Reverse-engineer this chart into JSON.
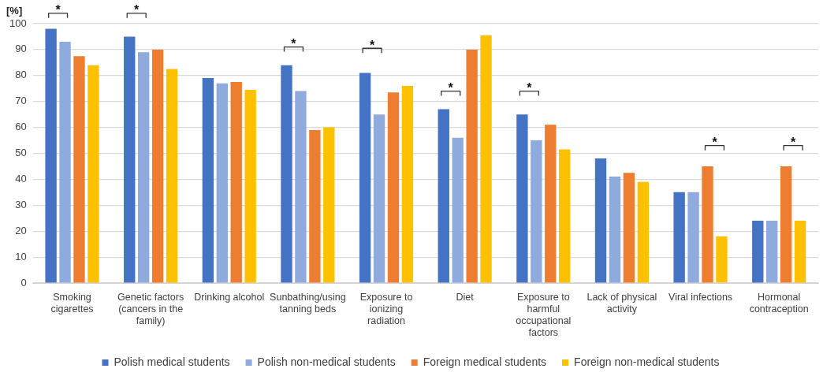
{
  "chart_data": {
    "type": "bar",
    "ylabel": "[%]",
    "categories": [
      "Smoking cigarettes",
      "Genetic factors (cancers in the family)",
      "Drinking alcohol",
      "Sunbathing/using tanning beds",
      "Exposure to ionizing radiation",
      "Diet",
      "Exposure to harmful occupational factors",
      "Lack of physical activity",
      "Viral infections",
      "Hormonal contraception"
    ],
    "series": [
      {
        "name": "Polish medical students",
        "color": "#4472c4",
        "values": [
          98,
          95,
          79,
          84,
          81,
          67,
          65,
          48,
          35,
          24
        ]
      },
      {
        "name": "Polish non-medical students",
        "color": "#8faadc",
        "values": [
          93,
          89,
          77,
          74,
          65,
          56,
          55,
          41,
          35,
          24
        ]
      },
      {
        "name": "Foreign medical students",
        "color": "#ed7d31",
        "values": [
          87.5,
          90,
          77.5,
          59,
          73.5,
          90,
          61,
          42.5,
          45,
          45
        ]
      },
      {
        "name": "Foreign non-medical students",
        "color": "#ffc000",
        "values": [
          84,
          82.5,
          74.5,
          60,
          76,
          95.5,
          51.5,
          39,
          18,
          24
        ]
      }
    ],
    "ylim": [
      0,
      100
    ],
    "yticks": [
      0,
      10,
      20,
      30,
      40,
      50,
      60,
      70,
      80,
      90,
      100
    ],
    "grid": "y",
    "legend": "bottom",
    "annotations": [
      "*",
      "*",
      "*",
      "*",
      "*",
      "*",
      "*",
      "*"
    ]
  }
}
